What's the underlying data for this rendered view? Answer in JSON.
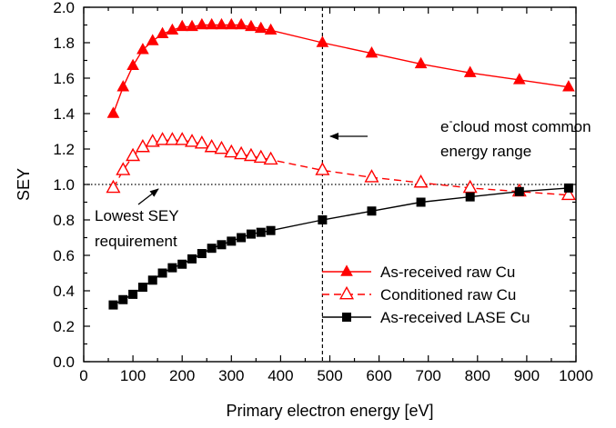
{
  "chart_data": {
    "type": "line",
    "xlabel": "Primary electron energy [eV]",
    "ylabel": "SEY",
    "xlim": [
      0,
      1000
    ],
    "ylim": [
      0.0,
      2.0
    ],
    "xticks": [
      0,
      100,
      200,
      300,
      400,
      500,
      600,
      700,
      800,
      900,
      1000
    ],
    "yticks": [
      "0.0",
      "0.2",
      "0.4",
      "0.6",
      "0.8",
      "1.0",
      "1.2",
      "1.4",
      "1.6",
      "1.8",
      "2.0"
    ],
    "grid": false,
    "legend_position": "bottom-right",
    "reference_lines": [
      {
        "orientation": "horizontal",
        "value": 1.0,
        "style": "dotted"
      },
      {
        "orientation": "vertical",
        "value": 485,
        "style": "dashed"
      }
    ],
    "annotations": [
      {
        "lines": [
          "e",
          "-",
          "cloud most common",
          "energy range"
        ],
        "points_to": "vertical-line"
      },
      {
        "lines": [
          "Lowest SEY",
          "requirement"
        ],
        "points_to": "horizontal-line"
      }
    ],
    "series": [
      {
        "name": "As-received raw Cu",
        "color": "#ff0000",
        "marker": "filled-triangle",
        "line": "solid",
        "x": [
          60,
          80,
          100,
          120,
          140,
          160,
          180,
          200,
          220,
          240,
          260,
          280,
          300,
          320,
          340,
          360,
          380,
          485,
          585,
          685,
          785,
          885,
          985
        ],
        "y": [
          1.4,
          1.55,
          1.67,
          1.76,
          1.81,
          1.85,
          1.87,
          1.89,
          1.89,
          1.9,
          1.9,
          1.9,
          1.9,
          1.9,
          1.89,
          1.88,
          1.87,
          1.8,
          1.74,
          1.68,
          1.63,
          1.59,
          1.55
        ]
      },
      {
        "name": "Conditioned raw Cu",
        "color": "#ff0000",
        "marker": "open-triangle",
        "line": "dashed",
        "x": [
          60,
          80,
          100,
          120,
          140,
          160,
          180,
          200,
          220,
          240,
          260,
          280,
          300,
          320,
          340,
          360,
          380,
          485,
          585,
          685,
          785,
          885,
          985
        ],
        "y": [
          0.98,
          1.08,
          1.16,
          1.21,
          1.24,
          1.25,
          1.25,
          1.25,
          1.24,
          1.23,
          1.21,
          1.2,
          1.18,
          1.17,
          1.16,
          1.15,
          1.14,
          1.08,
          1.04,
          1.01,
          0.98,
          0.96,
          0.94
        ]
      },
      {
        "name": "As-received LASE Cu",
        "color": "#000000",
        "marker": "filled-square",
        "line": "solid",
        "x": [
          60,
          80,
          100,
          120,
          140,
          160,
          180,
          200,
          220,
          240,
          260,
          280,
          300,
          320,
          340,
          360,
          380,
          485,
          585,
          685,
          785,
          885,
          985
        ],
        "y": [
          0.32,
          0.35,
          0.38,
          0.42,
          0.46,
          0.5,
          0.53,
          0.55,
          0.58,
          0.61,
          0.64,
          0.66,
          0.68,
          0.7,
          0.72,
          0.73,
          0.74,
          0.8,
          0.85,
          0.9,
          0.93,
          0.96,
          0.98
        ]
      }
    ]
  }
}
